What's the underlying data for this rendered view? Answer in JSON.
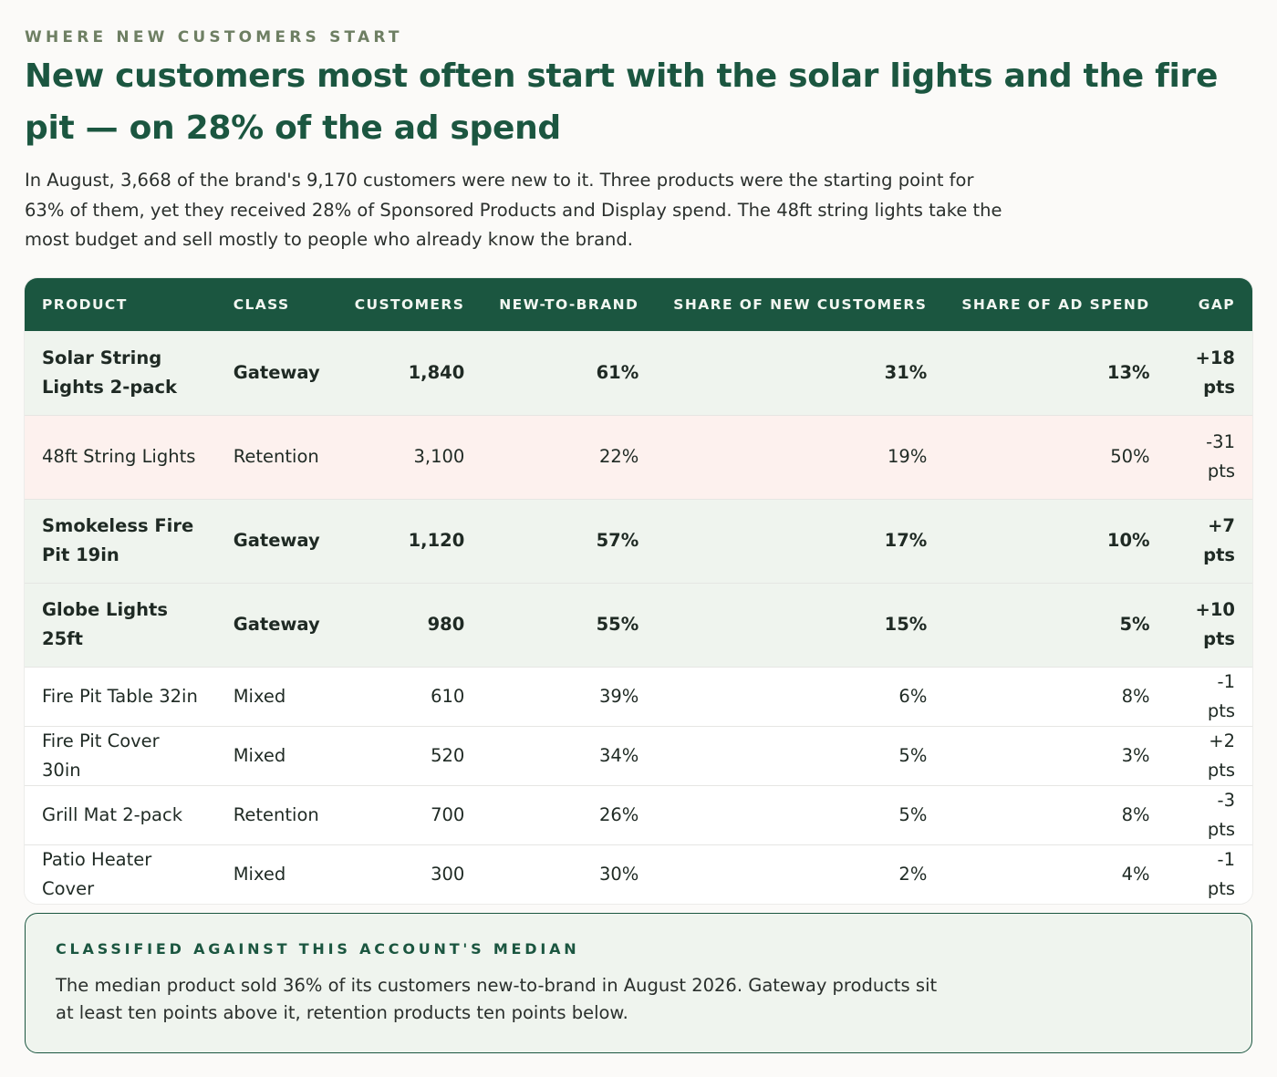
{
  "eyebrow": "WHERE NEW CUSTOMERS START",
  "headline": "New customers most often start with the solar lights and the fire pit — on 28% of the ad spend",
  "lede": "In August, 3,668 of the brand's 9,170 customers were new to it. Three products were the starting point for 63% of them, yet they received 28% of Sponsored Products and Display spend. The 48ft string lights take the most budget and sell mostly to people who already know the brand.",
  "table": {
    "headers": [
      "PRODUCT",
      "CLASS",
      "CUSTOMERS",
      "NEW-TO-BRAND",
      "SHARE OF NEW CUSTOMERS",
      "SHARE OF AD SPEND",
      "GAP"
    ],
    "rows": [
      {
        "product": "Solar String Lights 2-pack",
        "class": "Gateway",
        "customers": "1,840",
        "ntb": "61%",
        "share_new": "31%",
        "share_spend": "13%",
        "gap": "+18 pts"
      },
      {
        "product": "48ft String Lights",
        "class": "Retention",
        "customers": "3,100",
        "ntb": "22%",
        "share_new": "19%",
        "share_spend": "50%",
        "gap": "-31 pts"
      },
      {
        "product": "Smokeless Fire Pit 19in",
        "class": "Gateway",
        "customers": "1,120",
        "ntb": "57%",
        "share_new": "17%",
        "share_spend": "10%",
        "gap": "+7 pts"
      },
      {
        "product": "Globe Lights 25ft",
        "class": "Gateway",
        "customers": "980",
        "ntb": "55%",
        "share_new": "15%",
        "share_spend": "5%",
        "gap": "+10 pts"
      },
      {
        "product": "Fire Pit Table 32in",
        "class": "Mixed",
        "customers": "610",
        "ntb": "39%",
        "share_new": "6%",
        "share_spend": "8%",
        "gap": "-1 pts"
      },
      {
        "product": "Fire Pit Cover 30in",
        "class": "Mixed",
        "customers": "520",
        "ntb": "34%",
        "share_new": "5%",
        "share_spend": "3%",
        "gap": "+2 pts"
      },
      {
        "product": "Grill Mat 2-pack",
        "class": "Retention",
        "customers": "700",
        "ntb": "26%",
        "share_new": "5%",
        "share_spend": "8%",
        "gap": "-3 pts"
      },
      {
        "product": "Patio Heater Cover",
        "class": "Mixed",
        "customers": "300",
        "ntb": "30%",
        "share_new": "2%",
        "share_spend": "4%",
        "gap": "-1 pts"
      }
    ]
  },
  "note": {
    "title": "CLASSIFIED AGAINST THIS ACCOUNT'S MEDIAN",
    "body": "The median product sold 36% of its customers new-to-brand in August 2026. Gateway products sit at least ten points above it, retention products ten points below."
  },
  "colors": {
    "accent": "#1b5640",
    "gateway_row": "#eff4ee",
    "retention_highlight_row": "#fdf1ee",
    "eyebrow": "#6e7f63"
  }
}
